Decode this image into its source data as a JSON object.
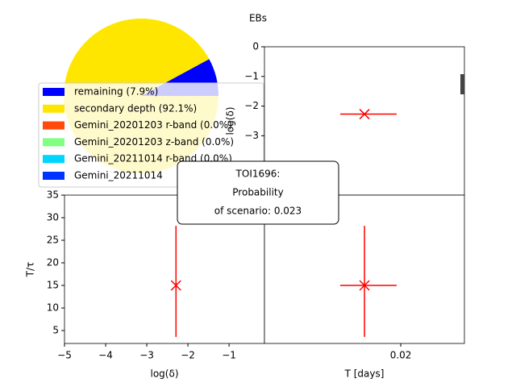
{
  "title": "EBs",
  "chart_data": [
    {
      "type": "pie",
      "labels": [
        "remaining (7.9%)",
        "secondary depth (92.1%)",
        "Gemini_20201203 r-band (0.0%)",
        "Gemini_20201203 z-band (0.0%)",
        "Gemini_20211014 r-band (0.0%)",
        "Gemini_20211014"
      ],
      "values": [
        7.9,
        92.1,
        0,
        0,
        0,
        0
      ],
      "colors": [
        "#0000ff",
        "#ffe600",
        "#ff4a0a",
        "#80ff80",
        "#00d5ff",
        "#0033ff"
      ]
    },
    {
      "type": "scatter",
      "ylabel": "log(δ)",
      "xlim": [
        0.01,
        0.02467
      ],
      "ylim": [
        -5,
        0
      ],
      "xticks": [],
      "yticks": [
        0,
        {
          "value": -1,
          "label": "−1"
        },
        {
          "value": -2,
          "label": "−2"
        },
        {
          "value": -3,
          "label": "−3"
        }
      ],
      "x": [
        0.01734
      ],
      "y": [
        -2.27
      ],
      "x_range": [
        [
          0.01556,
          0.0197
        ]
      ],
      "color": "#ff0000"
    },
    {
      "type": "scatter",
      "xlabel": "log(δ)",
      "ylabel": "T/τ",
      "xlim": [
        -5,
        -0.14
      ],
      "ylim": [
        2.14,
        35
      ],
      "xticks": [
        {
          "value": -5,
          "label": "−5"
        },
        {
          "value": -4,
          "label": "−4"
        },
        {
          "value": -3,
          "label": "−3"
        },
        {
          "value": -2,
          "label": "−2"
        },
        {
          "value": -1,
          "label": "−1"
        }
      ],
      "yticks": [
        5,
        10,
        15,
        20,
        25,
        30,
        35
      ],
      "x": [
        -2.29
      ],
      "y": [
        15
      ],
      "y_range": [
        [
          3.6,
          28.2
        ]
      ],
      "color": "#ff0000"
    },
    {
      "type": "scatter",
      "xlabel": "T [days]",
      "xlim": [
        0.01,
        0.02467
      ],
      "ylim": [
        2.14,
        35
      ],
      "xticks": [
        0.02
      ],
      "yticks": [],
      "x": [
        0.01734
      ],
      "y": [
        15
      ],
      "x_range": [
        [
          0.01556,
          0.0197
        ]
      ],
      "y_range": [
        [
          3.6,
          28.2
        ]
      ],
      "color": "#ff0000"
    }
  ],
  "annotation": [
    "TOI1696:",
    "Probability",
    "of scenario: 0.023"
  ]
}
